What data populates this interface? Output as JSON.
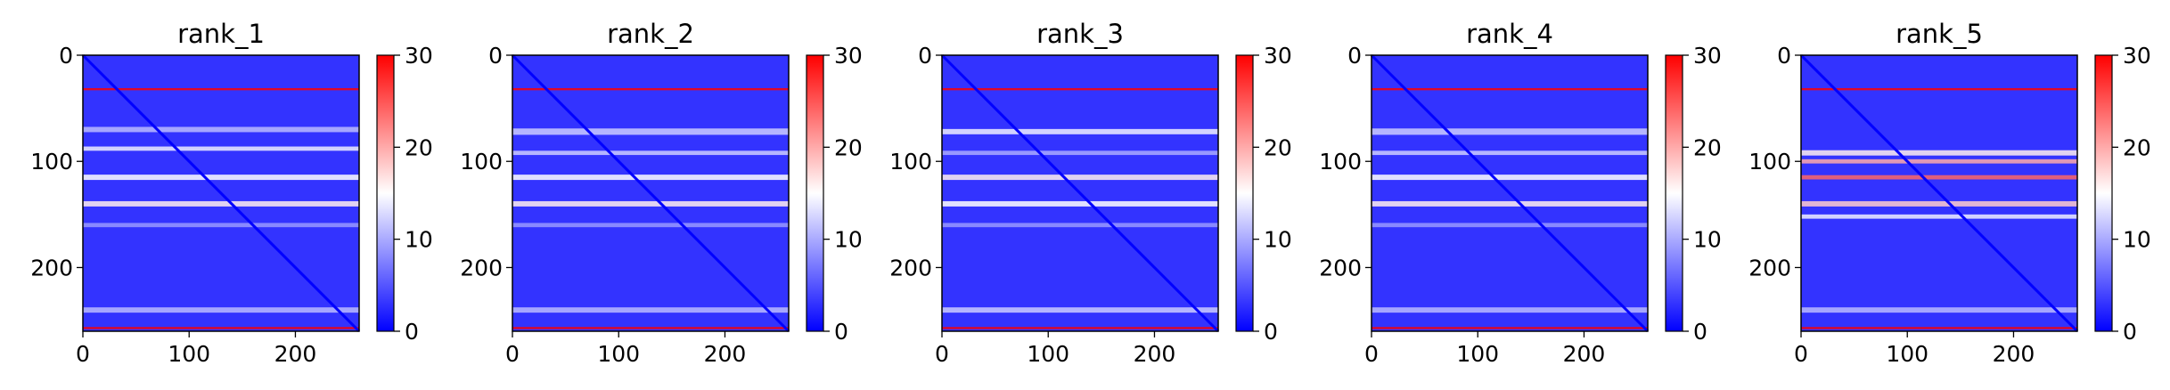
{
  "chart_data": [
    {
      "type": "heatmap",
      "title": "rank_1",
      "x_ticks": [
        0,
        100,
        200
      ],
      "y_ticks": [
        0,
        100,
        200
      ],
      "xlim": [
        0,
        260
      ],
      "ylim": [
        260,
        0
      ],
      "colorbar": {
        "min": 0,
        "max": 30,
        "ticks": [
          0,
          10,
          20,
          30
        ]
      },
      "colormap": [
        "#0000ff",
        "#ffffff",
        "#ff0000"
      ],
      "matrix_size": 260,
      "diagonal_value": 0,
      "background_value": 3,
      "bands": [
        {
          "row": 32,
          "width": 2,
          "value": 30
        },
        {
          "row": 70,
          "width": 5,
          "value": 11
        },
        {
          "row": 88,
          "width": 4,
          "value": 14
        },
        {
          "row": 115,
          "width": 5,
          "value": 15
        },
        {
          "row": 140,
          "width": 5,
          "value": 16
        },
        {
          "row": 160,
          "width": 4,
          "value": 9
        },
        {
          "row": 240,
          "width": 5,
          "value": 11
        },
        {
          "row": 257,
          "width": 2,
          "value": 30
        }
      ]
    },
    {
      "type": "heatmap",
      "title": "rank_2",
      "x_ticks": [
        0,
        100,
        200
      ],
      "y_ticks": [
        0,
        100,
        200
      ],
      "xlim": [
        0,
        260
      ],
      "ylim": [
        260,
        0
      ],
      "colorbar": {
        "min": 0,
        "max": 30,
        "ticks": [
          0,
          10,
          20,
          30
        ]
      },
      "colormap": [
        "#0000ff",
        "#ffffff",
        "#ff0000"
      ],
      "matrix_size": 260,
      "diagonal_value": 0,
      "background_value": 3,
      "bands": [
        {
          "row": 32,
          "width": 2,
          "value": 30
        },
        {
          "row": 72,
          "width": 6,
          "value": 12
        },
        {
          "row": 92,
          "width": 4,
          "value": 12
        },
        {
          "row": 115,
          "width": 5,
          "value": 15
        },
        {
          "row": 140,
          "width": 5,
          "value": 16
        },
        {
          "row": 160,
          "width": 4,
          "value": 9
        },
        {
          "row": 240,
          "width": 5,
          "value": 11
        },
        {
          "row": 257,
          "width": 2,
          "value": 30
        }
      ]
    },
    {
      "type": "heatmap",
      "title": "rank_3",
      "x_ticks": [
        0,
        100,
        200
      ],
      "y_ticks": [
        0,
        100,
        200
      ],
      "xlim": [
        0,
        260
      ],
      "ylim": [
        260,
        0
      ],
      "colorbar": {
        "min": 0,
        "max": 30,
        "ticks": [
          0,
          10,
          20,
          30
        ]
      },
      "colormap": [
        "#0000ff",
        "#ffffff",
        "#ff0000"
      ],
      "matrix_size": 260,
      "diagonal_value": 0,
      "background_value": 3,
      "bands": [
        {
          "row": 32,
          "width": 2,
          "value": 30
        },
        {
          "row": 72,
          "width": 5,
          "value": 14
        },
        {
          "row": 92,
          "width": 4,
          "value": 10
        },
        {
          "row": 115,
          "width": 5,
          "value": 16
        },
        {
          "row": 140,
          "width": 5,
          "value": 15
        },
        {
          "row": 160,
          "width": 4,
          "value": 9
        },
        {
          "row": 240,
          "width": 5,
          "value": 12
        },
        {
          "row": 257,
          "width": 2,
          "value": 30
        }
      ]
    },
    {
      "type": "heatmap",
      "title": "rank_4",
      "x_ticks": [
        0,
        100,
        200
      ],
      "y_ticks": [
        0,
        100,
        200
      ],
      "xlim": [
        0,
        260
      ],
      "ylim": [
        260,
        0
      ],
      "colorbar": {
        "min": 0,
        "max": 30,
        "ticks": [
          0,
          10,
          20,
          30
        ]
      },
      "colormap": [
        "#0000ff",
        "#ffffff",
        "#ff0000"
      ],
      "matrix_size": 260,
      "diagonal_value": 0,
      "background_value": 3,
      "bands": [
        {
          "row": 32,
          "width": 2,
          "value": 30
        },
        {
          "row": 72,
          "width": 6,
          "value": 12
        },
        {
          "row": 92,
          "width": 4,
          "value": 12
        },
        {
          "row": 115,
          "width": 5,
          "value": 15
        },
        {
          "row": 140,
          "width": 5,
          "value": 16
        },
        {
          "row": 160,
          "width": 4,
          "value": 9
        },
        {
          "row": 240,
          "width": 5,
          "value": 11
        },
        {
          "row": 257,
          "width": 2,
          "value": 30
        }
      ]
    },
    {
      "type": "heatmap",
      "title": "rank_5",
      "x_ticks": [
        0,
        100,
        200
      ],
      "y_ticks": [
        0,
        100,
        200
      ],
      "xlim": [
        0,
        260
      ],
      "ylim": [
        260,
        0
      ],
      "colorbar": {
        "min": 0,
        "max": 30,
        "ticks": [
          0,
          10,
          20,
          30
        ]
      },
      "colormap": [
        "#0000ff",
        "#ffffff",
        "#ff0000"
      ],
      "matrix_size": 260,
      "diagonal_value": 0,
      "background_value": 3,
      "bands": [
        {
          "row": 32,
          "width": 2,
          "value": 30
        },
        {
          "row": 92,
          "width": 5,
          "value": 16
        },
        {
          "row": 100,
          "width": 4,
          "value": 20
        },
        {
          "row": 115,
          "width": 4,
          "value": 24
        },
        {
          "row": 140,
          "width": 5,
          "value": 18
        },
        {
          "row": 152,
          "width": 4,
          "value": 14
        },
        {
          "row": 240,
          "width": 5,
          "value": 11
        },
        {
          "row": 257,
          "width": 2,
          "value": 30
        }
      ]
    }
  ]
}
